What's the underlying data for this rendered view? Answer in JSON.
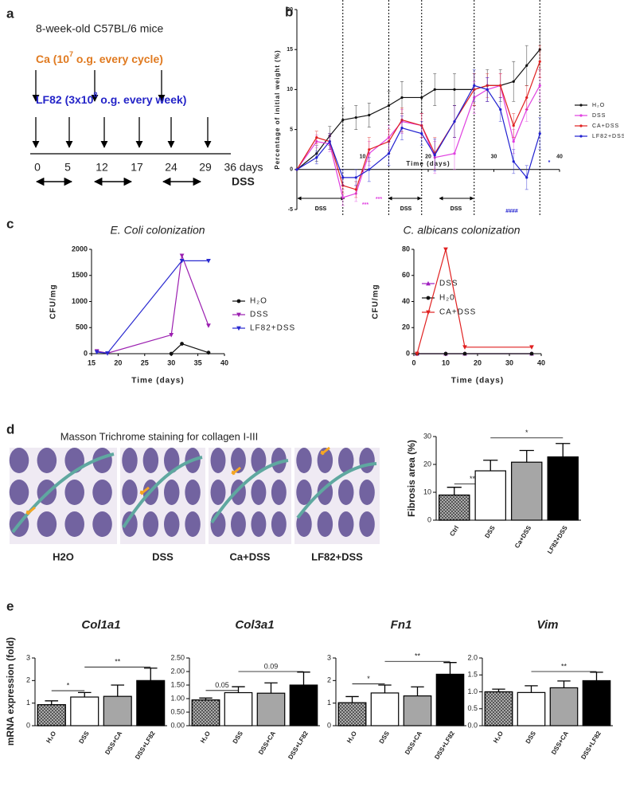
{
  "panel_labels": [
    "a",
    "b",
    "c",
    "d",
    "e"
  ],
  "panel_a": {
    "title": "8-week-old C57BL/6 mice",
    "ca": {
      "text": "Ca (10",
      "sup": "7",
      "rest": " o.g. every cycle)"
    },
    "lf82": {
      "text": "LF82 (3x10",
      "sup": "8",
      "rest": " o.g. every week)"
    },
    "timeline": [
      "0",
      "5",
      "12",
      "17",
      "24",
      "29",
      "36 days"
    ],
    "dss": "DSS"
  },
  "panel_d": {
    "title": "Masson Trichrome staining for collagen I-III",
    "images": [
      "H2O",
      "DSS",
      "Ca+DSS",
      "LF82+DSS"
    ]
  },
  "chart_data": [
    {
      "type": "line",
      "xlabel": "Time (days)",
      "ylabel": "Percentage of initial weight (%)",
      "xlim": [
        0,
        40
      ],
      "ylim": [
        -5,
        20
      ],
      "xticks": [
        10,
        20,
        30,
        40
      ],
      "yticks": [
        -5,
        0,
        5,
        10,
        15,
        20
      ],
      "vlines": [
        7,
        14,
        19,
        27,
        37
      ],
      "legend": "right",
      "annotations": [
        "DSS",
        "DSS",
        "DSS",
        "***",
        "***",
        "####",
        "*"
      ],
      "series": [
        {
          "name": "H₂O",
          "color": "#111111",
          "marker": "circle",
          "x": [
            0,
            3,
            5,
            7,
            9,
            11,
            14,
            16,
            19,
            21,
            24,
            27,
            29,
            31,
            33,
            35,
            37
          ],
          "values": [
            0,
            2,
            4.2,
            6.2,
            6.5,
            6.8,
            8,
            9,
            9,
            10,
            10,
            10,
            10.5,
            10.5,
            11,
            13,
            15
          ],
          "errors": [
            0,
            1,
            1.2,
            1.5,
            1.5,
            1.5,
            1.8,
            2,
            2,
            2,
            2,
            2,
            2,
            2,
            2.5,
            2.5,
            2.5
          ]
        },
        {
          "name": "DSS",
          "color": "#e040e0",
          "marker": "circle",
          "x": [
            0,
            3,
            5,
            7,
            9,
            11,
            14,
            16,
            19,
            21,
            24,
            27,
            29,
            31,
            33,
            35,
            37
          ],
          "values": [
            0,
            3.5,
            3.2,
            -3.5,
            -3,
            2,
            4,
            6,
            5.5,
            1.5,
            2,
            9,
            10,
            10.5,
            3.5,
            7.5,
            10.5
          ],
          "errors": [
            0,
            0.8,
            1,
            1,
            1,
            1.5,
            1.5,
            1.5,
            1.5,
            2,
            2,
            2,
            1.5,
            1.5,
            1.5,
            1.5,
            2
          ]
        },
        {
          "name": "CA+DSS",
          "color": "#e02020",
          "marker": "circle",
          "x": [
            0,
            3,
            5,
            7,
            9,
            11,
            14,
            16,
            19,
            21,
            24,
            27,
            29,
            31,
            33,
            35,
            37
          ],
          "values": [
            0,
            4,
            3.5,
            -2,
            -2.5,
            2.5,
            3.5,
            6.2,
            5.5,
            2,
            6,
            10,
            10.5,
            10.5,
            5.5,
            9,
            13.5
          ],
          "errors": [
            0,
            0.8,
            1,
            1,
            1,
            1.5,
            1.5,
            1.5,
            1.5,
            2,
            2,
            2,
            1.5,
            1.5,
            1.5,
            1.5,
            2
          ]
        },
        {
          "name": "LF82+DSS",
          "color": "#2020d0",
          "marker": "circle",
          "x": [
            0,
            3,
            5,
            7,
            9,
            11,
            14,
            16,
            19,
            21,
            24,
            27,
            29,
            31,
            33,
            35,
            37
          ],
          "values": [
            0,
            1.5,
            3.5,
            -1,
            -1,
            0,
            2,
            5.2,
            4.5,
            1.8,
            6,
            10.5,
            10,
            7.5,
            1,
            -1,
            4.5
          ],
          "errors": [
            0,
            0.8,
            1,
            1,
            1,
            1.5,
            1.5,
            1.5,
            1.5,
            2,
            2,
            2,
            1.5,
            1.5,
            1.5,
            1.5,
            2
          ]
        }
      ]
    },
    {
      "type": "line",
      "title": "E. Coli colonization",
      "xlabel": "Time (days)",
      "ylabel": "CFU/mg",
      "xlim": [
        15,
        40
      ],
      "ylim": [
        0,
        2000
      ],
      "xticks": [
        15,
        20,
        25,
        30,
        35,
        40
      ],
      "yticks": [
        0,
        500,
        1000,
        1500,
        2000
      ],
      "legend": "right",
      "series": [
        {
          "name": "H₂O",
          "color": "#111111",
          "marker": "circle",
          "x": [
            30,
            32,
            37
          ],
          "values": [
            0,
            190,
            20
          ]
        },
        {
          "name": "DSS",
          "color": "#9b1fb0",
          "marker": "triangle-down",
          "x": [
            16,
            18,
            30,
            32,
            37
          ],
          "values": [
            50,
            10,
            360,
            1880,
            540
          ]
        },
        {
          "name": "LF82+DSS",
          "color": "#2a2ad0",
          "marker": "triangle-down",
          "x": [
            16,
            18,
            32,
            37
          ],
          "values": [
            30,
            10,
            1780,
            1780
          ]
        }
      ]
    },
    {
      "type": "line",
      "title": "C. albicans colonization",
      "xlabel": "Time (days)",
      "ylabel": "CFU/mg",
      "xlim": [
        0,
        40
      ],
      "ylim": [
        0,
        80
      ],
      "xticks": [
        0,
        10,
        20,
        30,
        40
      ],
      "yticks": [
        0,
        20,
        40,
        60,
        80
      ],
      "legend": "inside",
      "series": [
        {
          "name": "DSS",
          "color": "#a020c0",
          "marker": "triangle-up",
          "x": [
            1,
            10,
            16,
            37
          ],
          "values": [
            0,
            0,
            0,
            0
          ]
        },
        {
          "name": "H₂0",
          "color": "#111111",
          "marker": "circle",
          "x": [
            1,
            10,
            16,
            37
          ],
          "values": [
            0,
            0,
            0,
            0
          ]
        },
        {
          "name": "CA+DSS",
          "color": "#e02020",
          "marker": "triangle-down",
          "x": [
            1,
            10,
            16,
            37
          ],
          "values": [
            0,
            80,
            5,
            5
          ]
        }
      ]
    },
    {
      "type": "bar",
      "ylabel": "Fibrosis area (%)",
      "categories": [
        "Ctrl",
        "DSS",
        "Ca+DSS",
        "LF82+DSS"
      ],
      "values": [
        9,
        17.7,
        20.8,
        22.7
      ],
      "errors": [
        2.8,
        3.8,
        4.2,
        4.8
      ],
      "colors": [
        "#454545",
        "#ffffff",
        "#a6a6a6",
        "#000000"
      ],
      "hatch": [
        true,
        false,
        false,
        false
      ],
      "ylim": [
        0,
        30
      ],
      "yticks": [
        0,
        10,
        20,
        30
      ],
      "significance": [
        "**",
        "*"
      ]
    },
    {
      "type": "bar",
      "title": "Col1a1",
      "ylabel": "mRNA expression (fold)",
      "categories": [
        "H₂O",
        "DSS",
        "DSS+CA",
        "DSS+LF82"
      ],
      "values": [
        0.93,
        1.27,
        1.3,
        2.0
      ],
      "errors": [
        0.17,
        0.2,
        0.5,
        0.55
      ],
      "colors": [
        "#454545",
        "#ffffff",
        "#a6a6a6",
        "#000000"
      ],
      "hatch": [
        true,
        false,
        false,
        false
      ],
      "ylim": [
        0,
        3
      ],
      "yticks": [
        0,
        1,
        2,
        3
      ],
      "significance": [
        "*",
        "**"
      ]
    },
    {
      "type": "bar",
      "title": "Col3a1",
      "categories": [
        "H₂O",
        "DSS",
        "DSS+CA",
        "DSS+LF82"
      ],
      "values": [
        0.95,
        1.22,
        1.2,
        1.5
      ],
      "errors": [
        0.07,
        0.22,
        0.38,
        0.48
      ],
      "colors": [
        "#454545",
        "#ffffff",
        "#a6a6a6",
        "#000000"
      ],
      "hatch": [
        true,
        false,
        false,
        false
      ],
      "ylim": [
        0,
        2.5
      ],
      "yticks": [
        {
          "value": 0,
          "label": "0.00"
        },
        {
          "value": 0.5,
          "label": "0.50"
        },
        {
          "value": 1,
          "label": "1.00"
        },
        {
          "value": 1.5,
          "label": "1.50"
        },
        {
          "value": 2,
          "label": "2.00"
        },
        {
          "value": 2.5,
          "label": "2.50"
        }
      ],
      "significance": [
        "0.05",
        "0.09"
      ]
    },
    {
      "type": "bar",
      "title": "Fn1",
      "categories": [
        "H₂O",
        "DSS",
        "DSS+CA",
        "DSS+LF82"
      ],
      "values": [
        1.02,
        1.45,
        1.32,
        2.28
      ],
      "errors": [
        0.27,
        0.35,
        0.4,
        0.52
      ],
      "colors": [
        "#454545",
        "#ffffff",
        "#a6a6a6",
        "#000000"
      ],
      "hatch": [
        true,
        false,
        false,
        false
      ],
      "ylim": [
        0,
        3
      ],
      "yticks": [
        0,
        1,
        2,
        3
      ],
      "significance": [
        "*",
        "**"
      ]
    },
    {
      "type": "bar",
      "title": "Vim",
      "categories": [
        "H₂O",
        "DSS",
        "DSS+CA",
        "DSS+LF82"
      ],
      "values": [
        1.0,
        0.98,
        1.12,
        1.33
      ],
      "errors": [
        0.08,
        0.2,
        0.2,
        0.25
      ],
      "colors": [
        "#454545",
        "#ffffff",
        "#a6a6a6",
        "#000000"
      ],
      "hatch": [
        true,
        false,
        false,
        false
      ],
      "ylim": [
        0,
        2
      ],
      "yticks": [
        {
          "value": 0,
          "label": "0.0"
        },
        {
          "value": 0.5,
          "label": "0.5"
        },
        {
          "value": 1,
          "label": "1.0"
        },
        {
          "value": 1.5,
          "label": "1.5"
        },
        {
          "value": 2,
          "label": "2.0"
        }
      ],
      "significance": [
        "**"
      ]
    }
  ]
}
